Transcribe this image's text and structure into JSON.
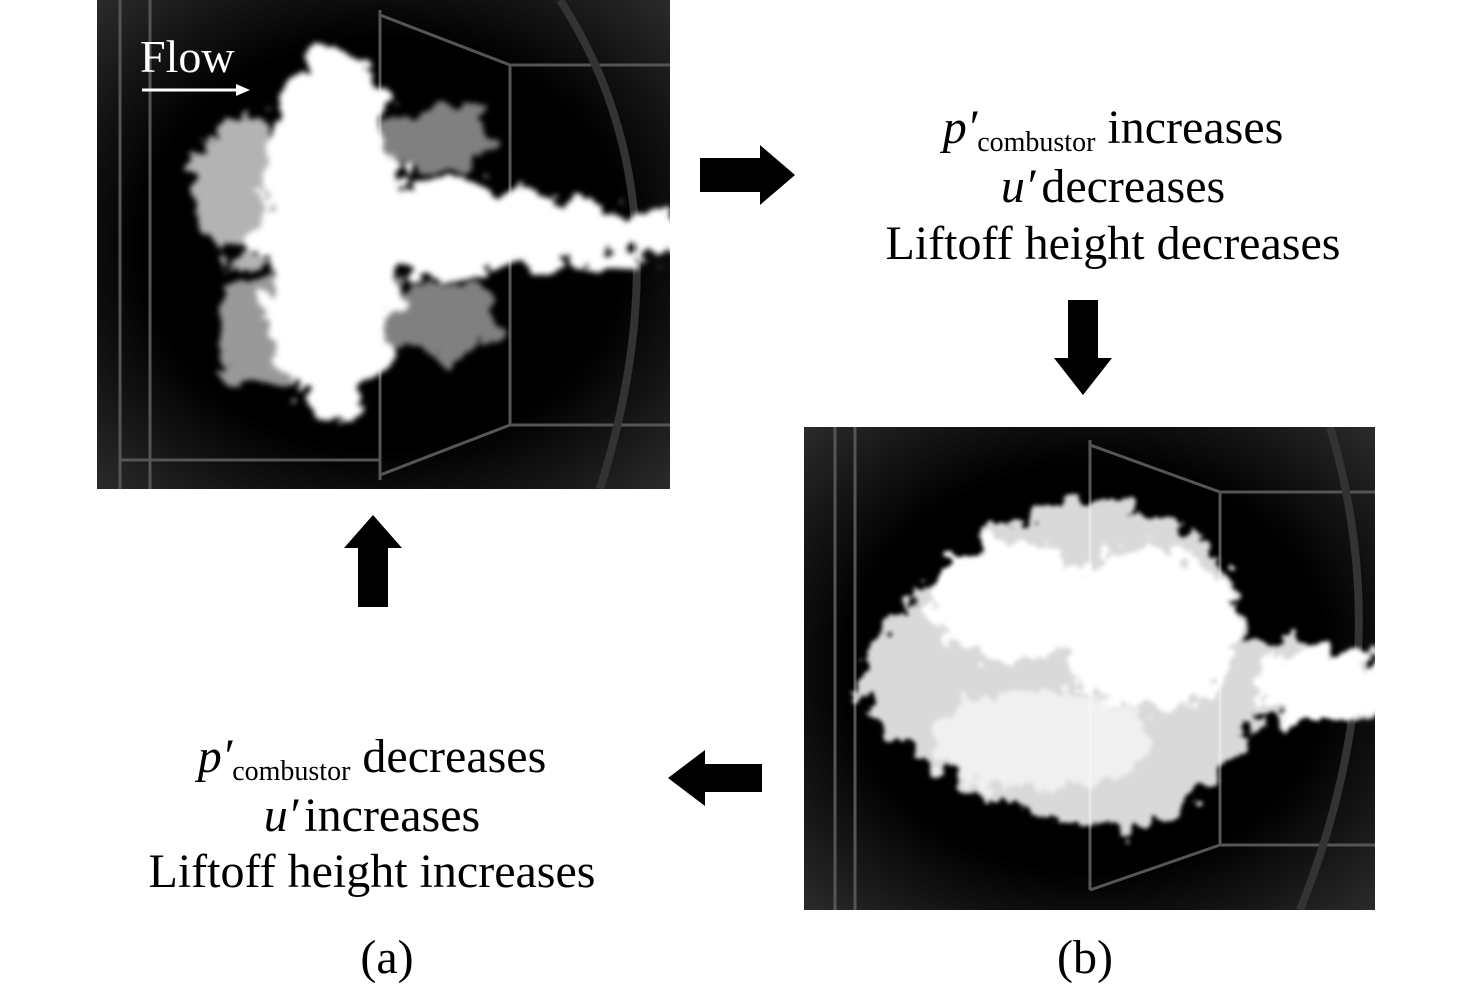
{
  "images": [
    {
      "label": "(a)",
      "annotation": "Flow"
    },
    {
      "label": "(b)"
    }
  ],
  "states": [
    {
      "pressure_symbol": "p′",
      "pressure_subscript": "combustor",
      "pressure_change": "increases",
      "velocity_symbol": "u′",
      "velocity_change": "decreases",
      "liftoff": "Liftoff height decreases"
    },
    {
      "pressure_symbol": "p′",
      "pressure_subscript": "combustor",
      "pressure_change": "decreases",
      "velocity_symbol": "u′",
      "velocity_change": "increases",
      "liftoff": "Liftoff height increases"
    }
  ]
}
